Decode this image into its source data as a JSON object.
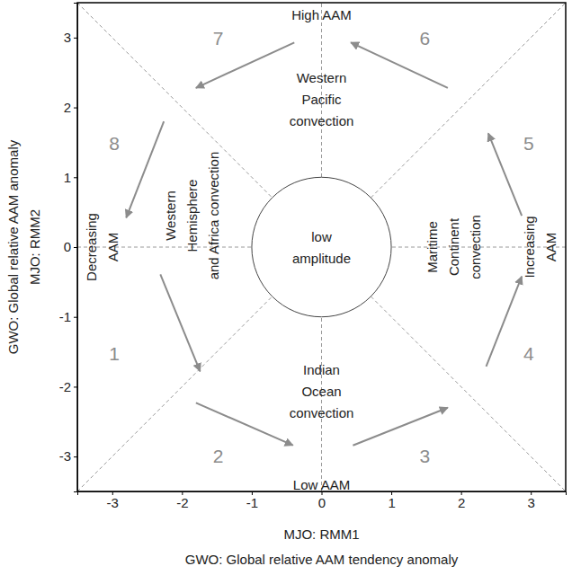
{
  "chart_data": {
    "type": "phase_diagram",
    "x_label": [
      "MJO: RMM1",
      "GWO: Global relative AAM tendency anomaly"
    ],
    "y_label": [
      "GWO: Global relative AAM anomaly",
      "MJO: RMM2"
    ],
    "xlim": [
      -3.5,
      3.5
    ],
    "ylim": [
      -3.5,
      3.5
    ],
    "xticks": [
      -3,
      -2,
      -1,
      0,
      1,
      2,
      3
    ],
    "yticks": [
      -3,
      -2,
      -1,
      0,
      1,
      2,
      3
    ],
    "phases": [
      1,
      2,
      3,
      4,
      5,
      6,
      7,
      8
    ],
    "center": {
      "radius": 1,
      "label": [
        "low",
        "amplitude"
      ]
    },
    "annotations": [
      {
        "lines": [
          "High AAM"
        ]
      },
      {
        "lines": [
          "Western",
          "Pacific",
          "convection"
        ]
      },
      {
        "lines": [
          "Maritime",
          "Continent",
          "convection"
        ]
      },
      {
        "lines": [
          "Increasing",
          "AAM"
        ]
      },
      {
        "lines": [
          "Indian",
          "Ocean",
          "convection"
        ]
      },
      {
        "lines": [
          "Low AAM"
        ]
      },
      {
        "lines": [
          "Western",
          "Hemisphere",
          "and Africa convection"
        ]
      },
      {
        "lines": [
          "Decreasing",
          "AAM"
        ]
      }
    ]
  }
}
